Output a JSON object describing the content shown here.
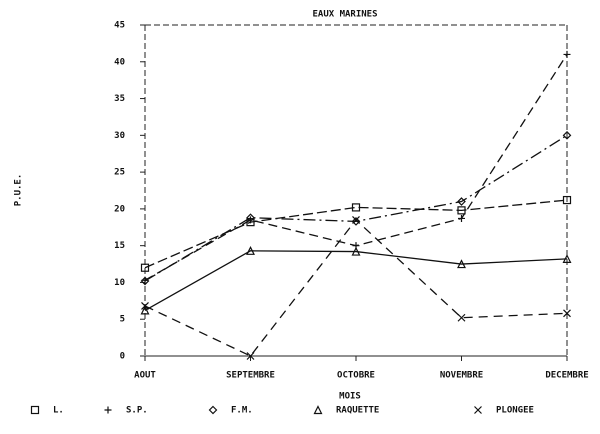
{
  "chart_data": {
    "type": "line",
    "title": "EAUX MARINES",
    "x_label": "MOIS",
    "y_label": "P.U.E.",
    "categories": [
      "AOUT",
      "SEPTEMBRE",
      "OCTOBRE",
      "NOVEMBRE",
      "DECEMBRE"
    ],
    "ylim": [
      0,
      45
    ],
    "yticks": [
      0,
      5,
      10,
      15,
      20,
      25,
      30,
      35,
      40,
      45
    ],
    "series": [
      {
        "name": "L.",
        "color": "#111111",
        "values": [
          12,
          18.2,
          20.2,
          19.8,
          21.2
        ]
      },
      {
        "name": "S.P.",
        "color": "#111111",
        "values": [
          10.3,
          18.5,
          15,
          18.7,
          41
        ]
      },
      {
        "name": "F.M.",
        "color": "#111111",
        "values": [
          10.2,
          18.8,
          18.3,
          21,
          30
        ]
      },
      {
        "name": "RAQUETTE",
        "color": "#111111",
        "values": [
          6.2,
          14.3,
          14.2,
          12.5,
          13.2
        ]
      },
      {
        "name": "PLONGEE",
        "color": "#111111",
        "values": [
          6.8,
          0,
          18.5,
          5.2,
          5.8
        ]
      }
    ]
  }
}
